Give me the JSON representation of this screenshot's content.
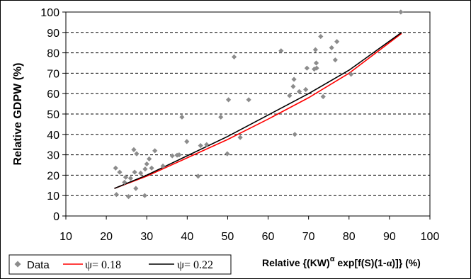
{
  "chart_data": {
    "type": "scatter",
    "ylabel": "Relative GDPW (%)",
    "xlabel_parts": {
      "prefix": "Relative {(KW)",
      "superscript": "α",
      "middle": " exp[f(S)(1-",
      "alpha": "α",
      "suffix": ")]} (%)"
    },
    "xlim": [
      10,
      100
    ],
    "ylim": [
      0,
      100
    ],
    "xticks": [
      "10",
      "20",
      "30",
      "40",
      "50",
      "60",
      "70",
      "80",
      "90",
      "100"
    ],
    "yticks": [
      "0",
      "10",
      "20",
      "30",
      "40",
      "50",
      "60",
      "70",
      "80",
      "90",
      "100"
    ],
    "grid": "horizontal dashed",
    "legend_position": "bottom-left",
    "colors": {
      "data": "#8c8c8c",
      "psi018": "#ff0000",
      "psi022": "#000000"
    },
    "series": [
      {
        "name": "Data",
        "kind": "points",
        "x": [
          22.3,
          22.5,
          23.3,
          24.5,
          24.8,
          25.5,
          26.0,
          26.8,
          27.0,
          27.3,
          27.5,
          28.5,
          29.5,
          29.6,
          30.0,
          30.6,
          31.2,
          32.0,
          34.0,
          36.3,
          37.5,
          38.0,
          38.7,
          39.9,
          42.7,
          43.3,
          44.8,
          48.3,
          49.9,
          50.2,
          51.6,
          53.1,
          55.2,
          63.2,
          65.3,
          66.2,
          66.4,
          66.6,
          67.7,
          69.3,
          69.6,
          71.4,
          71.7,
          71.9,
          72.0,
          73.0,
          73.6,
          75.7,
          76.6,
          77.0,
          80.5,
          92.8
        ],
        "y": [
          23.5,
          10.5,
          21.5,
          16.5,
          19.0,
          9.5,
          18.5,
          32.5,
          21.5,
          13.5,
          30.5,
          21.0,
          10.0,
          23.0,
          25.5,
          28.0,
          23.5,
          32.0,
          24.5,
          29.5,
          29.8,
          30.0,
          48.5,
          36.5,
          19.5,
          34.5,
          35.0,
          48.5,
          30.5,
          57.0,
          78.0,
          38.5,
          57.0,
          81.0,
          59.0,
          63.5,
          67.0,
          40.0,
          61.0,
          62.0,
          72.5,
          72.0,
          81.5,
          75.0,
          72.5,
          88.0,
          58.5,
          82.5,
          76.5,
          85.5,
          69.5,
          100.0
        ]
      },
      {
        "name": "ψ = 0.18",
        "kind": "line",
        "x": [
          22,
          30,
          40,
          50,
          60,
          70,
          80,
          93
        ],
        "y": [
          13.5,
          19.5,
          28.5,
          37.5,
          47.5,
          58.0,
          70.0,
          89.5
        ]
      },
      {
        "name": "ψ = 0.22",
        "kind": "line",
        "x": [
          22,
          30,
          40,
          50,
          60,
          70,
          80,
          93
        ],
        "y": [
          13.5,
          20.0,
          29.5,
          39.0,
          49.5,
          60.0,
          71.5,
          90.0
        ]
      }
    ],
    "legend": {
      "data_label": "Data",
      "psi_symbol": "ψ",
      "psi1_value": "= 0.18",
      "psi2_value": "= 0.22"
    }
  }
}
